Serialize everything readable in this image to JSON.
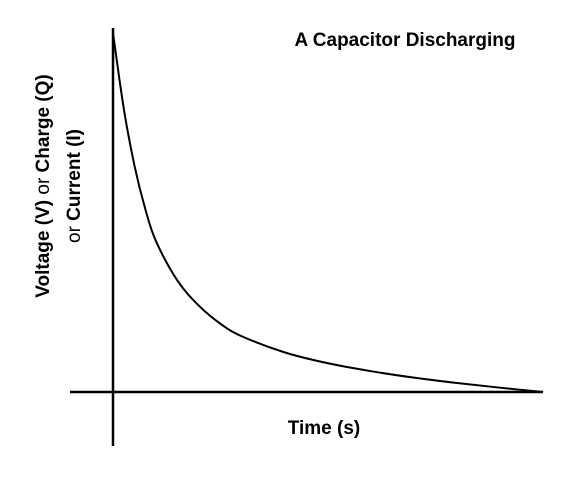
{
  "chart_data": {
    "type": "line",
    "title": "A Capacitor Discharging",
    "xlabel": "Time (s)",
    "ylabel": {
      "line1": {
        "a": "Voltage (V)",
        "b": " or ",
        "c": "Charge (Q)"
      },
      "line2": {
        "a": "or ",
        "b": "Current (I)"
      }
    },
    "series": [
      {
        "x": [
          0,
          0.25,
          0.5,
          0.75,
          1,
          1.5,
          2,
          2.5,
          3,
          4,
          5,
          6,
          7,
          8,
          9,
          10
        ],
        "values": [
          1.0,
          0.79,
          0.63,
          0.51,
          0.42,
          0.31,
          0.24,
          0.19,
          0.155,
          0.11,
          0.08,
          0.058,
          0.04,
          0.025,
          0.012,
          0
        ]
      }
    ],
    "xlim": [
      0,
      10
    ],
    "ylim": [
      0,
      1
    ],
    "grid": false,
    "ticks": false,
    "colors": {
      "line": "#000000",
      "axis": "#000000"
    }
  }
}
